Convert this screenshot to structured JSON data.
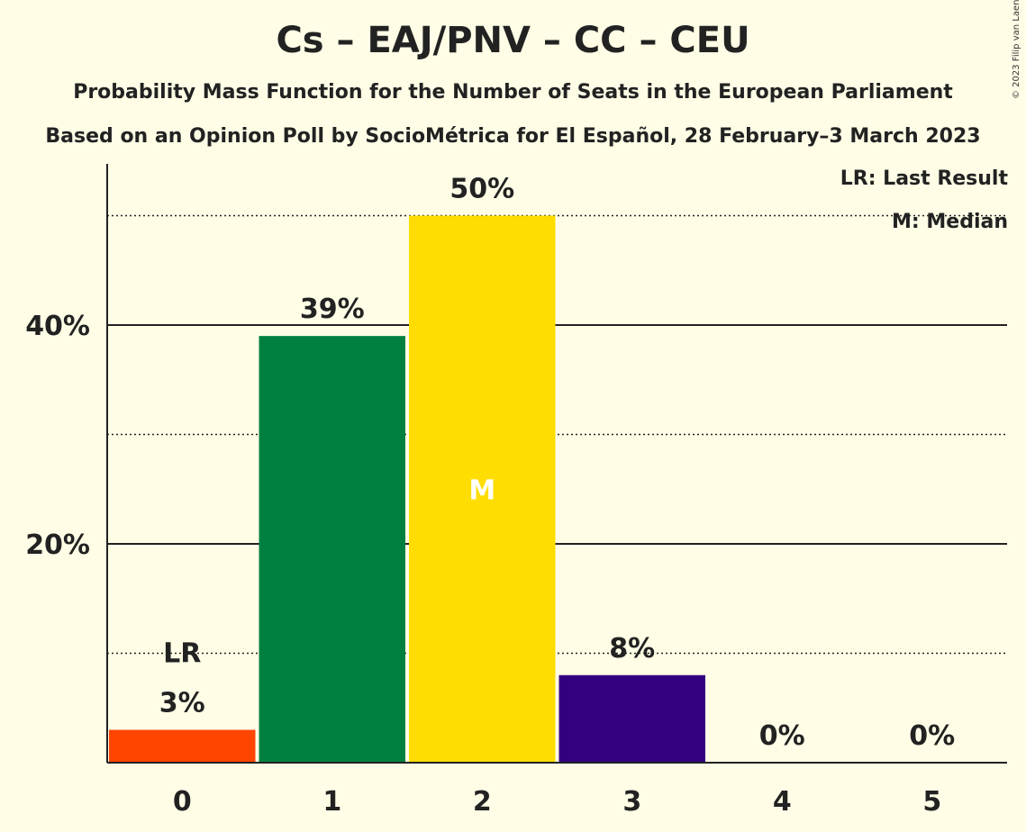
{
  "title": "Cs – EAJ/PNV – CC – CEU",
  "subtitle": "Probability Mass Function for the Number of Seats in the European Parliament",
  "subtitle2": "Based on an Opinion Poll by SocioMétrica for El Español, 28 February–3 March 2023",
  "copyright": "© 2023 Filip van Laenen",
  "legend": {
    "last_result": "LR: Last Result",
    "median": "M: Median"
  },
  "chart_data": {
    "type": "bar",
    "categories": [
      "0",
      "1",
      "2",
      "3",
      "4",
      "5"
    ],
    "values": [
      3,
      39,
      50,
      8,
      0,
      0
    ],
    "value_labels": [
      "3%",
      "39%",
      "50%",
      "8%",
      "0%",
      "0%"
    ],
    "colors": [
      "#FF4500",
      "#008040",
      "#FFDD00",
      "#330080",
      "#FFDD00",
      "#FFDD00"
    ],
    "ylim": [
      0,
      55
    ],
    "yticks": [
      20,
      40
    ],
    "ytick_labels": [
      "20%",
      "40%"
    ],
    "minor_gridlines": [
      10,
      30,
      50
    ],
    "last_result_index": 0,
    "last_result_label": "LR",
    "median_index": 2,
    "median_label": "M",
    "xlabel": "",
    "ylabel": ""
  }
}
